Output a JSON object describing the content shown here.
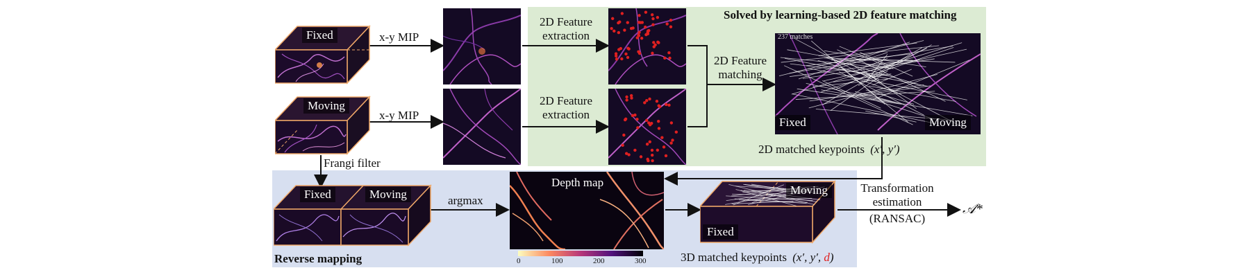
{
  "region_title": "Solved by learning-based 2D feature matching",
  "reverse_title": "Reverse mapping",
  "fixed_label": "Fixed",
  "moving_label": "Moving",
  "mip_label_1": "x-y MIP",
  "mip_label_2": "x-y MIP",
  "feat_label_1": "2D Feature extraction",
  "feat_label_2": "2D Feature extraction",
  "matching_label": "2D Feature matching",
  "match_count_text": "237 matches",
  "frangi_label": "Frangi filter",
  "argmax_label": "argmax",
  "depth_title": "Depth map",
  "colorbar_ticks": [
    "0",
    "100",
    "200",
    "300"
  ],
  "kp2d_label": "2D matched keypoints",
  "kp2d_math": "(x′, y′)",
  "kp3d_label": "3D matched keypoints",
  "kp3d_math_pre": "(x′, y′, ",
  "kp3d_math_d": "d",
  "kp3d_math_post": ")",
  "transform_line1": "Transformation",
  "transform_line2": "estimation",
  "transform_line3": "(RANSAC)",
  "output_symbol": "𝒜*",
  "colors": {
    "green_region": "#dcebd3",
    "blue_region": "#d7dff0",
    "box_outline": "#f0a868",
    "keypoint_red": "#e02020",
    "d_red": "#e02020",
    "vessel": "#c070d0"
  }
}
